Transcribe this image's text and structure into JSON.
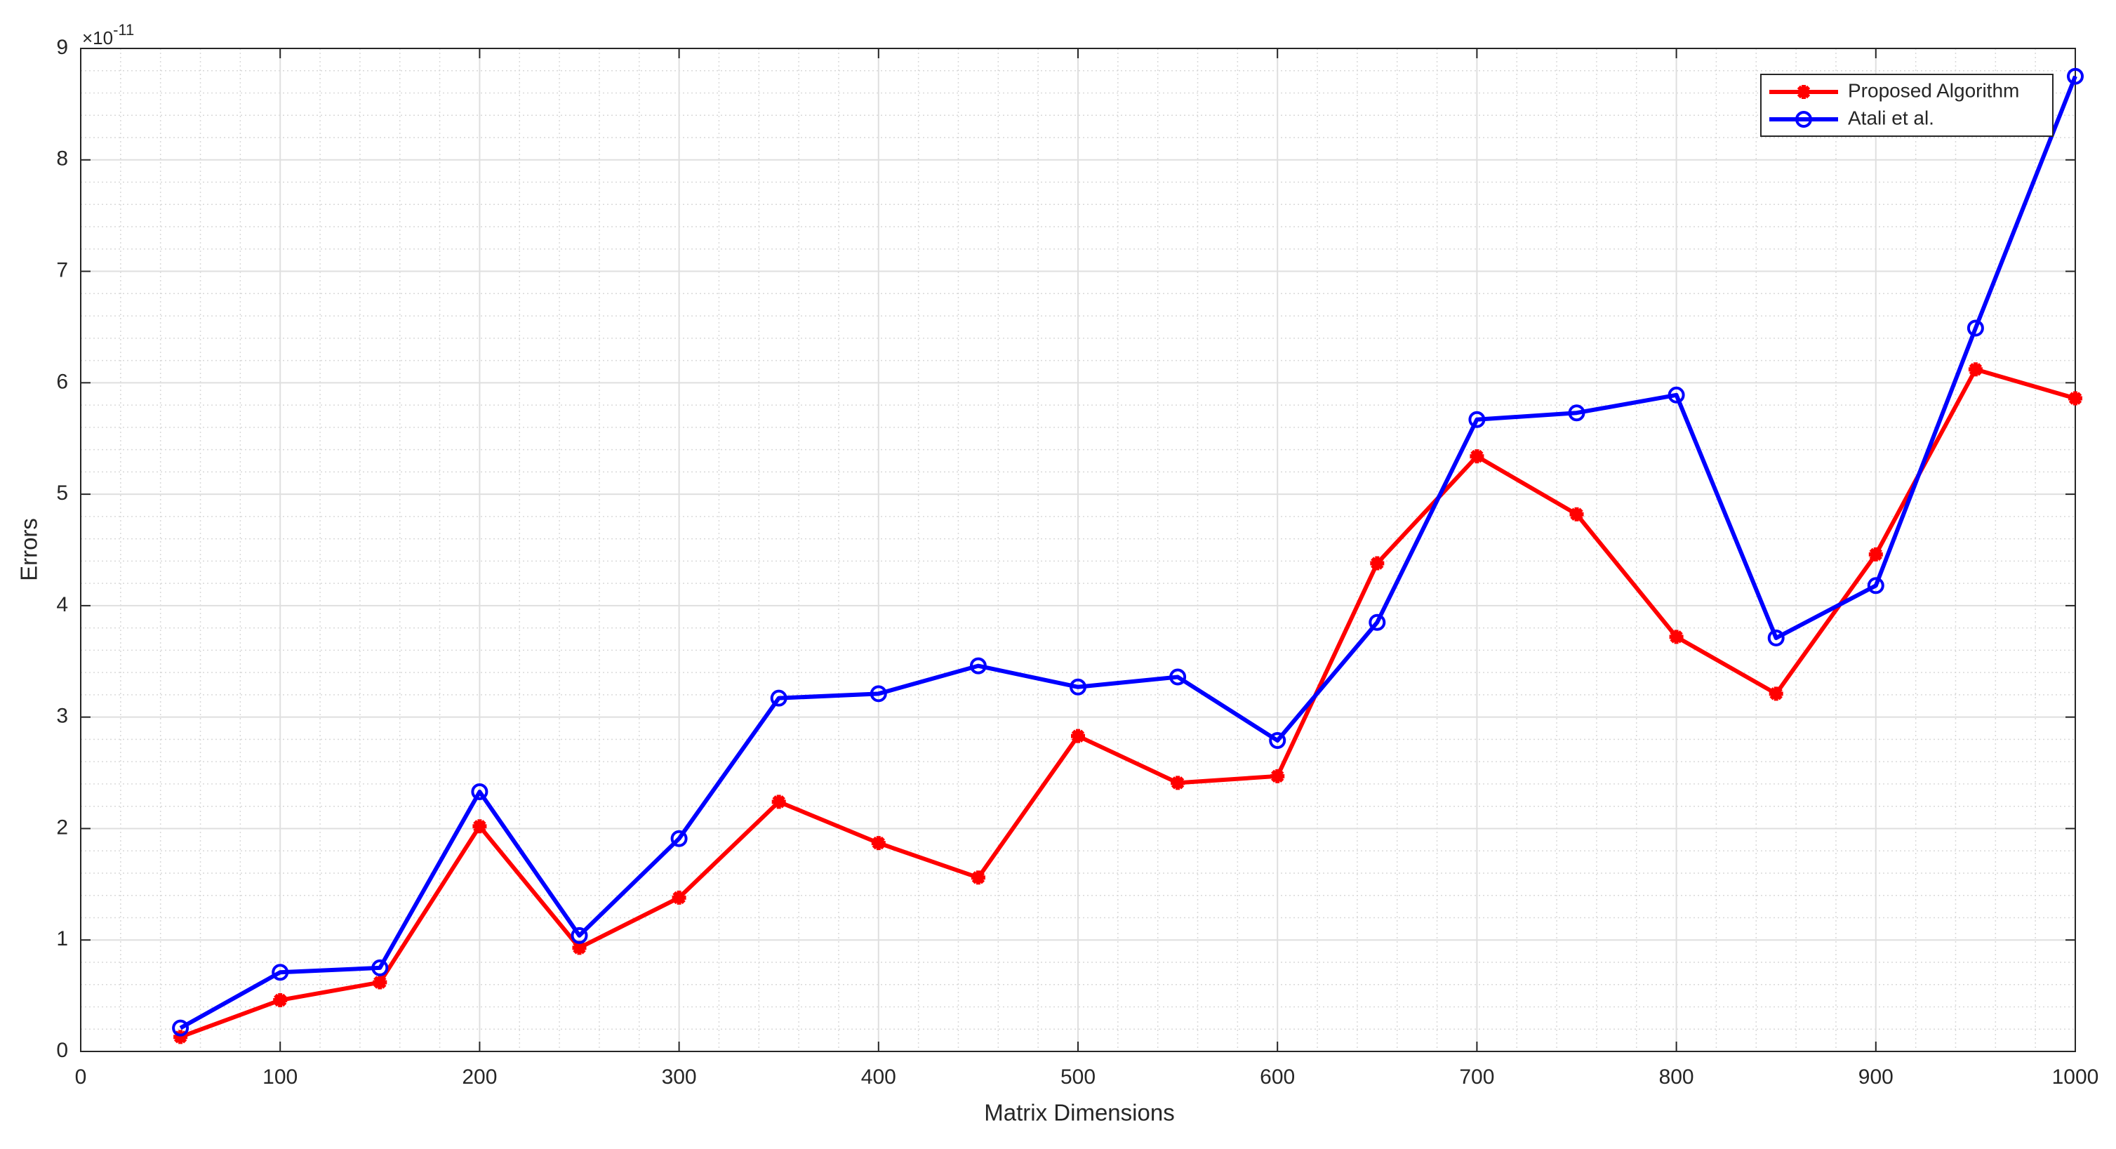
{
  "chart_data": {
    "type": "line",
    "x_label": "Matrix Dimensions",
    "y_label": "Errors",
    "y_multiplier": {
      "base": "×10",
      "exponent": "-11"
    },
    "x": [
      50,
      100,
      150,
      200,
      250,
      300,
      350,
      400,
      450,
      500,
      550,
      600,
      650,
      700,
      750,
      800,
      850,
      900,
      950,
      1000
    ],
    "series": [
      {
        "name": "Proposed Algorithm",
        "color": "#ff0000",
        "marker": "star",
        "values": [
          0.13,
          0.46,
          0.62,
          2.02,
          0.93,
          1.38,
          2.24,
          1.87,
          1.56,
          2.83,
          2.41,
          2.47,
          4.38,
          5.34,
          4.82,
          3.72,
          3.21,
          4.46,
          6.12,
          5.86
        ]
      },
      {
        "name": "Atali et al.",
        "color": "#0000ff",
        "marker": "circle",
        "values": [
          0.21,
          0.71,
          0.75,
          2.33,
          1.04,
          1.91,
          3.17,
          3.21,
          3.46,
          3.27,
          3.36,
          2.79,
          3.85,
          5.67,
          5.73,
          5.89,
          3.71,
          4.18,
          6.49,
          8.75
        ]
      }
    ],
    "xlim": [
      0,
      1000
    ],
    "xticks": [
      0,
      100,
      200,
      300,
      400,
      500,
      600,
      700,
      800,
      900,
      1000
    ],
    "ylim": [
      0,
      9
    ],
    "yticks": [
      0,
      1,
      2,
      3,
      4,
      5,
      6,
      7,
      8,
      9
    ],
    "grid": true,
    "minor_grid": true,
    "legend": "top-right"
  }
}
